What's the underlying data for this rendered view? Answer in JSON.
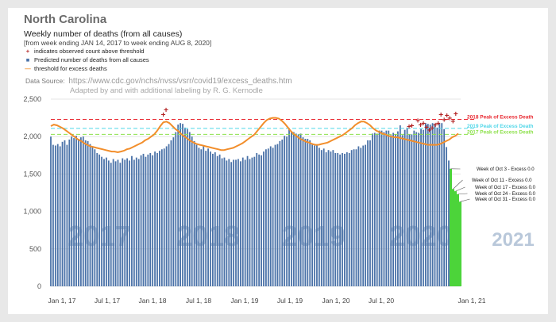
{
  "header": {
    "state": "North Carolina",
    "title": "Weekly number of deaths (from all causes)",
    "subtitle": "[from week ending JAN 14, 2017 to week ending AUG 8, 2020]",
    "legend": [
      {
        "symbol": "+",
        "label": "indicates observed count above threshold",
        "color": "#b22222"
      },
      {
        "symbol": "■",
        "label": "Predicted number of deaths from all causes",
        "color": "#4a72a8"
      },
      {
        "symbol": "—",
        "label": "threshold for excess deaths",
        "color": "#f28e2b"
      }
    ],
    "source_label": "Data Source:",
    "source_url": "https://www.cdc.gov/nchs/nvss/vsrr/covid19/excess_deaths.htm",
    "credit": "Adapted by and with additional labeling by R. G. Kernodle"
  },
  "chart_data": {
    "type": "bar",
    "ylim": [
      0,
      2500
    ],
    "yticks": [
      "0",
      "500",
      "1,000",
      "1,500",
      "2,000",
      "2,500"
    ],
    "xticks": [
      "Jan 1, 17",
      "Jul 1, 17",
      "Jan 1, 18",
      "Jul 1, 18",
      "Jan 1, 19",
      "Jul 1, 19",
      "Jan 1, 20",
      "Jul 1, 20",
      "Jan 1, 21"
    ],
    "year_watermarks": [
      "2017",
      "2018",
      "2019",
      "2020",
      "2021"
    ],
    "series": [
      {
        "name": "Predicted number of deaths from all causes",
        "color": "#4a72a8",
        "values": [
          2000,
          1890,
          1880,
          1900,
          1870,
          1930,
          1950,
          1890,
          1960,
          2000,
          1980,
          2010,
          1970,
          1990,
          2000,
          1950,
          1940,
          1900,
          1870,
          1830,
          1780,
          1760,
          1730,
          1700,
          1720,
          1680,
          1650,
          1700,
          1670,
          1690,
          1650,
          1710,
          1690,
          1710,
          1680,
          1740,
          1690,
          1720,
          1700,
          1750,
          1770,
          1730,
          1760,
          1780,
          1750,
          1800,
          1780,
          1810,
          1830,
          1840,
          1870,
          1900,
          1950,
          1990,
          2060,
          2160,
          2180,
          2170,
          2120,
          2100,
          2060,
          2000,
          1940,
          1890,
          1850,
          1830,
          1870,
          1810,
          1840,
          1800,
          1770,
          1790,
          1740,
          1760,
          1710,
          1720,
          1680,
          1700,
          1660,
          1690,
          1690,
          1700,
          1670,
          1720,
          1690,
          1740,
          1700,
          1720,
          1730,
          1780,
          1760,
          1750,
          1800,
          1830,
          1840,
          1870,
          1850,
          1890,
          1900,
          1940,
          1960,
          2010,
          2000,
          2110,
          2070,
          2060,
          2040,
          2030,
          2040,
          1990,
          1970,
          1970,
          1950,
          1910,
          1880,
          1890,
          1850,
          1820,
          1840,
          1790,
          1820,
          1800,
          1820,
          1780,
          1780,
          1760,
          1780,
          1770,
          1790,
          1780,
          1820,
          1830,
          1830,
          1870,
          1850,
          1880,
          1890,
          1950,
          1950,
          2040,
          2050,
          2040,
          2080,
          2080,
          2060,
          2080,
          2080,
          2020,
          2050,
          2030,
          2070,
          2150,
          2020,
          2090,
          2120,
          2030,
          2030,
          2080,
          2060,
          2050,
          2100,
          2090,
          2180,
          2170,
          2160,
          2180,
          2170,
          2120,
          2170,
          2180,
          2100,
          1860,
          1680
        ]
      },
      {
        "name": "Excess",
        "color": "#4cd43a",
        "values": [
          1570,
          1300,
          1270,
          1230,
          1130
        ]
      }
    ],
    "excess_labels": [
      "Week of Oct 3 - Excess 0.0",
      "Week of Oct 11 - Excess 0.0",
      "Week of Oct 17 - Excess 0.0",
      "Week of Oct 24 - Excess 0.0",
      "Week of Oct 31 - Excess 0.0"
    ],
    "threshold": [
      2140,
      2160,
      2150,
      2130,
      2110,
      2080,
      2050,
      2020,
      1990,
      1960,
      1940,
      1910,
      1890,
      1870,
      1860,
      1850,
      1840,
      1830,
      1820,
      1810,
      1800,
      1800,
      1790,
      1800,
      1810,
      1830,
      1840,
      1860,
      1880,
      1900,
      1920,
      1950,
      1970,
      2000,
      2030,
      2080,
      2140,
      2190,
      2200,
      2180,
      2140,
      2100,
      2070,
      2030,
      2000,
      1970,
      1940,
      1920,
      1900,
      1890,
      1880,
      1870,
      1860,
      1850,
      1840,
      1830,
      1820,
      1820,
      1830,
      1840,
      1850,
      1870,
      1890,
      1910,
      1940,
      1970,
      2000,
      2030,
      2080,
      2130,
      2180,
      2220,
      2240,
      2250,
      2250,
      2240,
      2210,
      2170,
      2120,
      2070,
      2030,
      2000,
      1970,
      1950,
      1930,
      1920,
      1900,
      1890,
      1890,
      1900,
      1910,
      1920,
      1940,
      1960,
      1980,
      2000,
      2020,
      2050,
      2080,
      2110,
      2150,
      2180,
      2200,
      2200,
      2180,
      2150,
      2110,
      2080,
      2060,
      2040,
      2030,
      2010,
      2000,
      1990,
      1990,
      1980,
      1970,
      1960,
      1950,
      1940,
      1930,
      1920,
      1910,
      1900,
      1890,
      1890,
      1890,
      1890,
      1900,
      1920,
      1940,
      1960,
      1990,
      2010,
      2040
    ],
    "plus_markers": [
      {
        "x": "Jan 2018",
        "y": 2290
      },
      {
        "x": "Jan 2018",
        "y": 2350
      },
      {
        "x": "May 2020",
        "y": 2130
      },
      {
        "x": "May 2020",
        "y": 2140
      },
      {
        "x": "Jun 2020",
        "y": 2210
      },
      {
        "x": "Jun 2020",
        "y": 2150
      },
      {
        "x": "Jun 2020",
        "y": 2170
      },
      {
        "x": "Jul 2020",
        "y": 2120
      },
      {
        "x": "Jul 2020",
        "y": 2080
      },
      {
        "x": "Jul 2020",
        "y": 2110
      },
      {
        "x": "Aug 2020",
        "y": 2150
      },
      {
        "x": "Aug 2020",
        "y": 2170
      },
      {
        "x": "Aug 2020",
        "y": 2290
      },
      {
        "x": "Sep 2020",
        "y": 2220
      },
      {
        "x": "Sep 2020",
        "y": 2280
      },
      {
        "x": "Sep 2020",
        "y": 2240
      },
      {
        "x": "Oct 2020",
        "y": 2200
      },
      {
        "x": "Oct 2020",
        "y": 2300
      }
    ],
    "reference_lines": [
      {
        "label": "2018 Peak of Excess Death",
        "value": 2230,
        "color": "#e8262f"
      },
      {
        "label": "2019 Peak of Excess Death",
        "value": 2110,
        "color": "#4fd6e8"
      },
      {
        "label": "2017 Peak of Excess Death",
        "value": 2030,
        "color": "#8ce04a"
      }
    ]
  }
}
